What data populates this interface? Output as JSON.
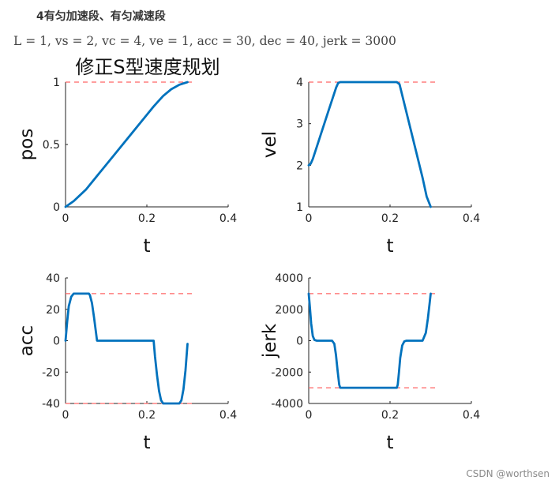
{
  "heading": "4有匀加速段、有匀减速段",
  "params_text": "L = 1, vs = 2, vc = 4, ve = 1, acc = 30, dec = 40, jerk = 3000",
  "watermark": "CSDN @worthsen",
  "colors": {
    "curve": "#0072BD",
    "limit": "#FF6666",
    "axis": "#222222"
  },
  "chart_data": [
    {
      "type": "line",
      "title": "修正S型速度规划",
      "xlabel": "t",
      "ylabel": "pos",
      "xlim": [
        0,
        0.4
      ],
      "ylim": [
        0,
        1
      ],
      "xticks": [
        "0",
        "0.2",
        "0.4"
      ],
      "yticks": [
        "0",
        "0.5",
        "1"
      ],
      "xtick_values": [
        0,
        0.2,
        0.4
      ],
      "ytick_values": [
        0,
        0.5,
        1
      ],
      "limit_lines": [
        1
      ],
      "series": [
        {
          "x": [
            0,
            0.02,
            0.05,
            0.0775,
            0.12,
            0.16,
            0.2,
            0.2167,
            0.24,
            0.26,
            0.28,
            0.3
          ],
          "y": [
            0,
            0.046,
            0.138,
            0.248,
            0.418,
            0.578,
            0.738,
            0.805,
            0.889,
            0.943,
            0.979,
            1.0
          ]
        }
      ]
    },
    {
      "type": "line",
      "title": "",
      "xlabel": "t",
      "ylabel": "vel",
      "xlim": [
        0,
        0.4
      ],
      "ylim": [
        1,
        4
      ],
      "xticks": [
        "0",
        "0.2",
        "0.4"
      ],
      "yticks": [
        "1",
        "2",
        "3",
        "4"
      ],
      "xtick_values": [
        0,
        0.2,
        0.4
      ],
      "ytick_values": [
        1,
        2,
        3,
        4
      ],
      "limit_lines": [
        4
      ],
      "series": [
        {
          "x": [
            0,
            0.005,
            0.01,
            0.02,
            0.03,
            0.05,
            0.0675,
            0.0725,
            0.0775,
            0.2167,
            0.2233,
            0.28,
            0.29,
            0.3
          ],
          "y": [
            2,
            2.04,
            2.15,
            2.45,
            2.75,
            3.35,
            3.87,
            3.98,
            4.0,
            4.0,
            3.95,
            1.7,
            1.25,
            1.0
          ]
        }
      ]
    },
    {
      "type": "line",
      "title": "",
      "xlabel": "t",
      "ylabel": "acc",
      "xlim": [
        0,
        0.4
      ],
      "ylim": [
        -40,
        40
      ],
      "xticks": [
        "0",
        "0.2",
        "0.4"
      ],
      "yticks": [
        "-40",
        "-20",
        "0",
        "20",
        "40"
      ],
      "xtick_values": [
        0,
        0.2,
        0.4
      ],
      "ytick_values": [
        -40,
        -20,
        0,
        20,
        40
      ],
      "limit_lines": [
        30,
        -40
      ],
      "series": [
        {
          "x": [
            0,
            0.004,
            0.008,
            0.014,
            0.02,
            0.0575,
            0.06,
            0.065,
            0.07,
            0.075,
            0.0775,
            0.2167,
            0.22,
            0.225,
            0.23,
            0.235,
            0.24,
            0.28,
            0.285,
            0.29,
            0.295,
            0.3
          ],
          "y": [
            0,
            12,
            22,
            28,
            30,
            30,
            29,
            24,
            15,
            5,
            0,
            0,
            -10,
            -22,
            -32,
            -38,
            -40,
            -40,
            -38,
            -31,
            -19,
            -2
          ]
        }
      ]
    },
    {
      "type": "line",
      "title": "",
      "xlabel": "t",
      "ylabel": "jerk",
      "xlim": [
        0,
        0.4
      ],
      "ylim": [
        -4000,
        4000
      ],
      "xticks": [
        "0",
        "0.2",
        "0.4"
      ],
      "yticks": [
        "-4000",
        "-2000",
        "0",
        "2000",
        "4000"
      ],
      "xtick_values": [
        0,
        0.2,
        0.4
      ],
      "ytick_values": [
        -4000,
        -2000,
        0,
        2000,
        4000
      ],
      "limit_lines": [
        3000,
        -3000
      ],
      "series": [
        {
          "x": [
            0,
            0.003,
            0.006,
            0.01,
            0.014,
            0.02,
            0.0575,
            0.063,
            0.067,
            0.071,
            0.075,
            0.0775,
            0.2167,
            0.219,
            0.222,
            0.225,
            0.23,
            0.235,
            0.24,
            0.28,
            0.288,
            0.293,
            0.297,
            0.3
          ],
          "y": [
            3000,
            2100,
            1100,
            300,
            50,
            0,
            0,
            -200,
            -900,
            -1900,
            -2800,
            -3000,
            -3000,
            -2800,
            -2000,
            -1100,
            -300,
            -50,
            0,
            0,
            500,
            1400,
            2300,
            3000
          ]
        }
      ]
    }
  ]
}
